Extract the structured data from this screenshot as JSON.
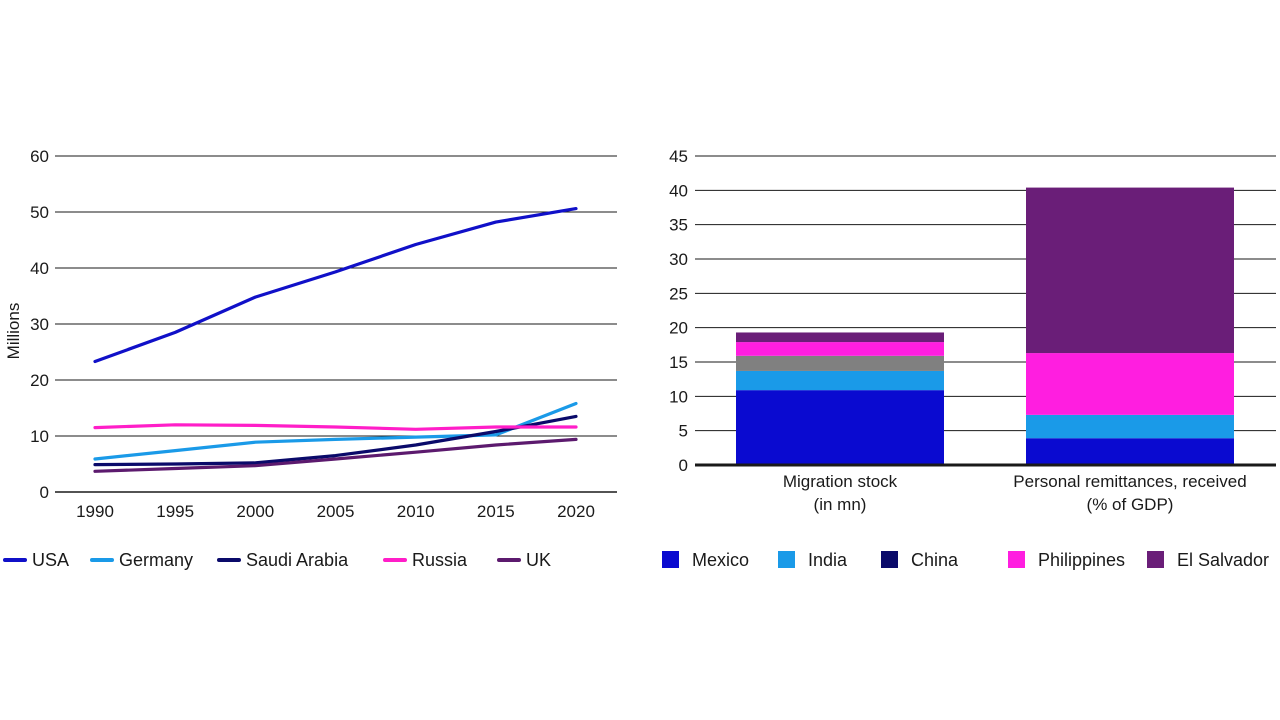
{
  "chart_data": [
    {
      "type": "line",
      "ylabel": "Millions",
      "xlabel": "",
      "x": [
        "1990",
        "1995",
        "2000",
        "2005",
        "2010",
        "2015",
        "2020"
      ],
      "yticks": [
        "0",
        "10",
        "20",
        "30",
        "40",
        "50",
        "60"
      ],
      "ylim": [
        0,
        60
      ],
      "grid": true,
      "legend_position": "bottom",
      "series": [
        {
          "name": "USA",
          "color": "#1010c8",
          "values": [
            23.3,
            28.5,
            34.8,
            39.3,
            44.2,
            48.2,
            50.6
          ]
        },
        {
          "name": "Germany",
          "color": "#1a9ae8",
          "values": [
            5.9,
            7.4,
            8.9,
            9.4,
            9.8,
            10.2,
            15.8
          ]
        },
        {
          "name": "Saudi Arabia",
          "color": "#0a0a6a",
          "values": [
            4.9,
            5.0,
            5.2,
            6.5,
            8.4,
            10.8,
            13.5
          ]
        },
        {
          "name": "Russia",
          "color": "#ff1ec8",
          "values": [
            11.5,
            12.0,
            11.9,
            11.6,
            11.2,
            11.6,
            11.6
          ]
        },
        {
          "name": "UK",
          "color": "#5c1a6e",
          "values": [
            3.7,
            4.2,
            4.7,
            5.9,
            7.1,
            8.4,
            9.4
          ]
        }
      ]
    },
    {
      "type": "bar",
      "stacked": true,
      "categories": [
        "Migration stock\n(in mn)",
        "Personal remittances, received\n(% of GDP)"
      ],
      "yticks": [
        "0",
        "5",
        "10",
        "15",
        "20",
        "25",
        "30",
        "35",
        "40",
        "45"
      ],
      "ylim": [
        0,
        45
      ],
      "grid": true,
      "legend_position": "bottom",
      "series": [
        {
          "name": "Mexico",
          "color": "#0a0ad0",
          "values": [
            10.9,
            3.9
          ]
        },
        {
          "name": "India",
          "color": "#1a9ae8",
          "values": [
            2.8,
            3.4
          ]
        },
        {
          "name": "China",
          "color": "#0a0a6a",
          "values": [
            0,
            0
          ]
        },
        {
          "name": "",
          "color": "#808080",
          "values": [
            2.2,
            0
          ]
        },
        {
          "name": "Philippines",
          "color": "#ff1ee0",
          "values": [
            2.0,
            9.0
          ]
        },
        {
          "name": "El Salvador",
          "color": "#6a1e78",
          "values": [
            1.4,
            24.1
          ]
        }
      ]
    }
  ]
}
